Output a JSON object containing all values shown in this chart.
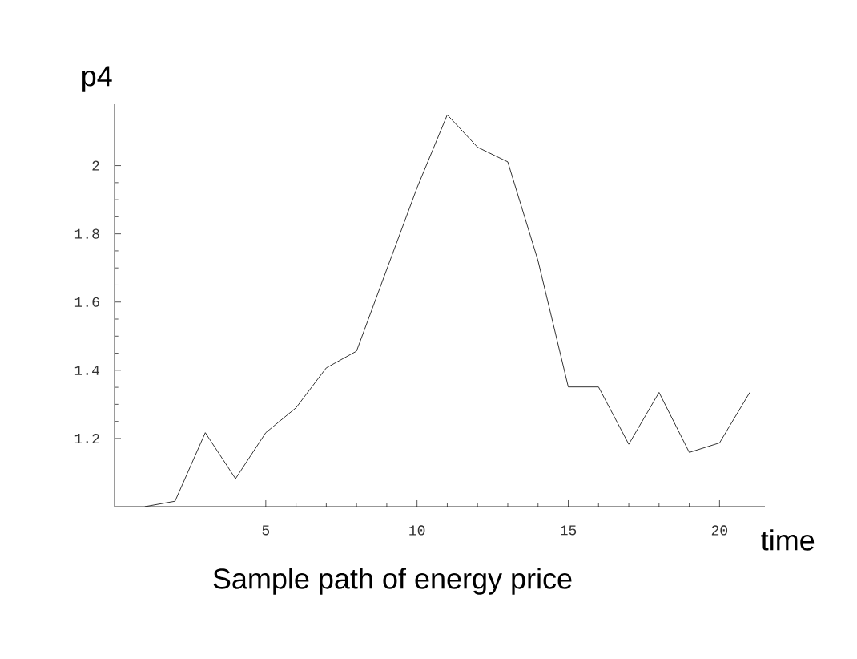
{
  "chart_data": {
    "type": "line",
    "title": "Sample path of energy price",
    "xlabel": "time",
    "ylabel": "p4",
    "x": [
      1,
      2,
      3,
      4,
      5,
      6,
      7,
      8,
      9,
      10,
      11,
      12,
      13,
      14,
      15,
      16,
      17,
      18,
      19,
      20,
      21
    ],
    "series": [
      {
        "color": "#000000",
        "values": [
          1.0,
          1.016,
          1.217,
          1.082,
          1.217,
          1.29,
          1.407,
          1.456,
          1.696,
          1.935,
          2.149,
          2.054,
          2.011,
          1.721,
          1.351,
          1.351,
          1.183,
          1.335,
          1.159,
          1.187,
          1.335
        ]
      }
    ],
    "xlim": [
      0,
      21.5
    ],
    "ylim": [
      1.0,
      2.18
    ],
    "xticks": [
      5,
      10,
      15,
      20
    ],
    "yticks": [
      1.2,
      1.4,
      1.6,
      1.8,
      2
    ],
    "grid": false,
    "marker": "none",
    "line_style": "solid"
  }
}
